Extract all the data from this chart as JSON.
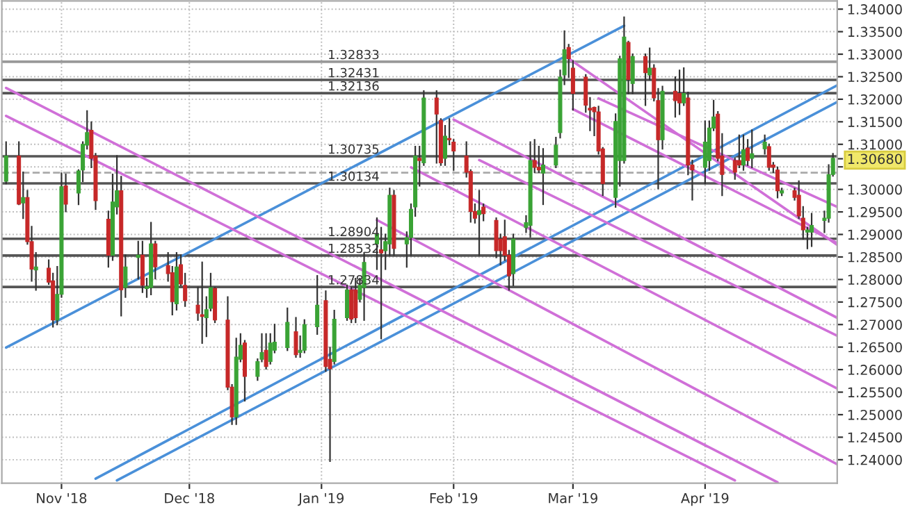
{
  "chart_data": {
    "type": "candlestick",
    "xlim": [
      "2018-10-18",
      "2019-05-02"
    ],
    "xticks": [
      {
        "value": "2018-11-01",
        "label": "Nov '18"
      },
      {
        "value": "2018-12-01",
        "label": "Dec '18"
      },
      {
        "value": "2019-01-01",
        "label": "Jan '19"
      },
      {
        "value": "2019-02-01",
        "label": "Feb '19"
      },
      {
        "value": "2019-03-01",
        "label": "Mar '19"
      },
      {
        "value": "2019-04-01",
        "label": "Apr '19"
      }
    ],
    "ylim": [
      1.2348,
      1.3418
    ],
    "yticks": [
      {
        "value": 1.24,
        "label": "1.24000"
      },
      {
        "value": 1.245,
        "label": "1.24500"
      },
      {
        "value": 1.25,
        "label": "1.25000"
      },
      {
        "value": 1.255,
        "label": "1.25500"
      },
      {
        "value": 1.26,
        "label": "1.26000"
      },
      {
        "value": 1.265,
        "label": "1.26500"
      },
      {
        "value": 1.27,
        "label": "1.27000"
      },
      {
        "value": 1.275,
        "label": "1.27500"
      },
      {
        "value": 1.28,
        "label": "1.28000"
      },
      {
        "value": 1.285,
        "label": "1.28500"
      },
      {
        "value": 1.29,
        "label": "1.29000"
      },
      {
        "value": 1.295,
        "label": "1.29500"
      },
      {
        "value": 1.3,
        "label": "1.30000"
      },
      {
        "value": 1.305,
        "label": null
      },
      {
        "value": 1.3068,
        "label": "1.30680"
      },
      {
        "value": 1.31,
        "label": "1.31000"
      },
      {
        "value": 1.315,
        "label": "1.31500"
      },
      {
        "value": 1.32,
        "label": "1.32000"
      },
      {
        "value": 1.325,
        "label": "1.32500"
      },
      {
        "value": 1.33,
        "label": "1.33000"
      },
      {
        "value": 1.335,
        "label": "1.33500"
      },
      {
        "value": 1.34,
        "label": "1.34000"
      }
    ],
    "grid": true,
    "ref_lines": [
      {
        "axis": "y",
        "value": 1.32833,
        "label": "1.32833",
        "color": "#999999"
      },
      {
        "axis": "y",
        "value": 1.32431,
        "label": "1.32431",
        "color": "#555555"
      },
      {
        "axis": "y",
        "value": 1.32136,
        "label": "1.32136",
        "color": "#555555"
      },
      {
        "axis": "y",
        "value": 1.30735,
        "label": "1.30735",
        "color": "#555555"
      },
      {
        "axis": "y",
        "value": 1.30134,
        "label": "1.30134",
        "color": "#555555"
      },
      {
        "axis": "y",
        "value": 1.28904,
        "label": "1.28904",
        "color": "#555555"
      },
      {
        "axis": "y",
        "value": 1.28532,
        "label": "1.28532",
        "color": "#555555"
      },
      {
        "axis": "y",
        "value": 1.27834,
        "label": "1.27834",
        "color": "#555555"
      },
      {
        "axis": "y",
        "value": 1.3037,
        "label": null,
        "color": "#aaaaaa",
        "line_style": "dashed"
      }
    ],
    "series": [
      {
        "type": "line",
        "color": "#4a90d9",
        "x": [
          "2018-10-19",
          "2019-03-13"
        ],
        "values": [
          1.2649,
          1.3363
        ]
      },
      {
        "type": "line",
        "color": "#4a90d9",
        "x": [
          "2018-11-09",
          "2019-05-02"
        ],
        "values": [
          1.2358,
          1.3231
        ]
      },
      {
        "type": "line",
        "color": "#4a90d9",
        "x": [
          "2018-11-14",
          "2019-05-02"
        ],
        "values": [
          1.2354,
          1.3194
        ]
      },
      {
        "type": "line",
        "color": "#d070d8",
        "x": [
          "2018-10-19",
          "2019-04-18"
        ],
        "values": [
          1.3225,
          1.235
        ]
      },
      {
        "type": "line",
        "color": "#d070d8",
        "x": [
          "2018-10-19",
          "2019-04-08"
        ],
        "values": [
          1.3163,
          1.2354
        ]
      },
      {
        "type": "line",
        "color": "#d070d8",
        "x": [
          "2019-01-14",
          "2019-05-02"
        ],
        "values": [
          1.2932,
          1.239
        ]
      },
      {
        "type": "line",
        "color": "#d070d8",
        "x": [
          "2019-01-22",
          "2019-05-02"
        ],
        "values": [
          1.3049,
          1.2558
        ]
      },
      {
        "type": "line",
        "color": "#d070d8",
        "x": [
          "2019-02-01",
          "2019-05-02"
        ],
        "values": [
          1.3155,
          1.2715
        ]
      },
      {
        "type": "line",
        "color": "#d070d8",
        "x": [
          "2019-02-07",
          "2019-05-02"
        ],
        "values": [
          1.3065,
          1.2675
        ]
      },
      {
        "type": "line",
        "color": "#d070d8",
        "x": [
          "2019-02-27",
          "2019-05-02"
        ],
        "values": [
          1.3297,
          1.2877
        ]
      },
      {
        "type": "line",
        "color": "#d070d8",
        "x": [
          "2019-03-01",
          "2019-05-02"
        ],
        "values": [
          1.3178,
          1.2881
        ]
      },
      {
        "type": "line",
        "color": "#d070d8",
        "x": [
          "2019-03-07",
          "2019-05-02"
        ],
        "values": [
          1.3202,
          1.2961
        ]
      },
      {
        "x": [
          "2018-10-19",
          "2018-10-22",
          "2018-10-23",
          "2018-10-24",
          "2018-10-25",
          "2018-10-26",
          "2018-10-29",
          "2018-10-30",
          "2018-10-31",
          "2018-11-01",
          "2018-11-02",
          "2018-11-05",
          "2018-11-06",
          "2018-11-07",
          "2018-11-08",
          "2018-11-09",
          "2018-11-12",
          "2018-11-13",
          "2018-11-14",
          "2018-11-15",
          "2018-11-16",
          "2018-11-19",
          "2018-11-20",
          "2018-11-21",
          "2018-11-22",
          "2018-11-23",
          "2018-11-26",
          "2018-11-27",
          "2018-11-28",
          "2018-11-29",
          "2018-11-30",
          "2018-12-03",
          "2018-12-04",
          "2018-12-05",
          "2018-12-06",
          "2018-12-07",
          "2018-12-10",
          "2018-12-11",
          "2018-12-12",
          "2018-12-13",
          "2018-12-14",
          "2018-12-17",
          "2018-12-18",
          "2018-12-19",
          "2018-12-20",
          "2018-12-21",
          "2018-12-24",
          "2018-12-26",
          "2018-12-27",
          "2018-12-28",
          "2018-12-31",
          "2019-01-02",
          "2019-01-03",
          "2019-01-04",
          "2019-01-07",
          "2019-01-08",
          "2019-01-09",
          "2019-01-10",
          "2019-01-11",
          "2019-01-14",
          "2019-01-15",
          "2019-01-16",
          "2019-01-17",
          "2019-01-18",
          "2019-01-21",
          "2019-01-22",
          "2019-01-23",
          "2019-01-24",
          "2019-01-25",
          "2019-01-28",
          "2019-01-29",
          "2019-01-30",
          "2019-01-31",
          "2019-02-01",
          "2019-02-04",
          "2019-02-05",
          "2019-02-06",
          "2019-02-07",
          "2019-02-08",
          "2019-02-11",
          "2019-02-12",
          "2019-02-13",
          "2019-02-14",
          "2019-02-15",
          "2019-02-18",
          "2019-02-19",
          "2019-02-20",
          "2019-02-21",
          "2019-02-22",
          "2019-02-25",
          "2019-02-26",
          "2019-02-27",
          "2019-02-28",
          "2019-03-01",
          "2019-03-04",
          "2019-03-05",
          "2019-03-06",
          "2019-03-07",
          "2019-03-08",
          "2019-03-11",
          "2019-03-12",
          "2019-03-13",
          "2019-03-14",
          "2019-03-15",
          "2019-03-18",
          "2019-03-19",
          "2019-03-20",
          "2019-03-21",
          "2019-03-22",
          "2019-03-25",
          "2019-03-26",
          "2019-03-27",
          "2019-03-28",
          "2019-03-29",
          "2019-04-01",
          "2019-04-02",
          "2019-04-03",
          "2019-04-04",
          "2019-04-05",
          "2019-04-08",
          "2019-04-09",
          "2019-04-10",
          "2019-04-11",
          "2019-04-12",
          "2019-04-15",
          "2019-04-16",
          "2019-04-17",
          "2019-04-18",
          "2019-04-19",
          "2019-04-22",
          "2019-04-23",
          "2019-04-24",
          "2019-04-25",
          "2019-04-26",
          "2019-04-29",
          "2019-04-30",
          "2019-05-01"
        ],
        "ohlc": [
          [
            1.3018,
            1.3105,
            1.3013,
            1.3074
          ],
          [
            1.3074,
            1.3105,
            1.2967,
            1.2967
          ],
          [
            1.297,
            1.3038,
            1.2936,
            1.2982
          ],
          [
            1.2982,
            1.2997,
            1.2879,
            1.2884
          ],
          [
            1.2884,
            1.2917,
            1.2797,
            1.2823
          ],
          [
            1.2821,
            1.2859,
            1.2777,
            1.2828
          ],
          [
            1.2825,
            1.2843,
            1.279,
            1.2794
          ],
          [
            1.2797,
            1.2813,
            1.2695,
            1.271
          ],
          [
            1.271,
            1.2828,
            1.27,
            1.2767
          ],
          [
            1.2767,
            1.3036,
            1.2761,
            1.3006
          ],
          [
            1.3008,
            1.3033,
            1.2951,
            1.2967
          ],
          [
            1.2992,
            1.3043,
            1.2967,
            1.3041
          ],
          [
            1.3043,
            1.3105,
            1.3018,
            1.31
          ],
          [
            1.3098,
            1.3174,
            1.309,
            1.3126
          ],
          [
            1.3131,
            1.3149,
            1.3049,
            1.3069
          ],
          [
            1.3074,
            1.3079,
            1.2956,
            1.2975
          ],
          [
            1.2934,
            1.2951,
            1.2828,
            1.2854
          ],
          [
            1.2854,
            1.3033,
            1.2843,
            1.2972
          ],
          [
            1.2961,
            1.3074,
            1.2946,
            1.2997
          ],
          [
            1.2997,
            1.3028,
            1.272,
            1.2777
          ],
          [
            1.2782,
            1.2854,
            1.2761,
            1.2828
          ],
          [
            1.2849,
            1.2884,
            1.2802,
            1.2854
          ],
          [
            1.2854,
            1.2884,
            1.2772,
            1.2787
          ],
          [
            1.278,
            1.2802,
            1.2761,
            1.2784
          ],
          [
            1.2782,
            1.2926,
            1.2767,
            1.2879
          ],
          [
            1.2879,
            1.2884,
            1.2802,
            1.2828
          ],
          [
            1.2831,
            1.2859,
            1.2797,
            1.2813
          ],
          [
            1.2815,
            1.2828,
            1.2722,
            1.2751
          ],
          [
            1.2746,
            1.2859,
            1.2733,
            1.2828
          ],
          [
            1.2833,
            1.2854,
            1.2787,
            1.279
          ],
          [
            1.2787,
            1.2813,
            1.2741,
            1.2753
          ],
          [
            1.2743,
            1.2782,
            1.271,
            1.2725
          ],
          [
            1.2722,
            1.2838,
            1.2659,
            1.2718
          ],
          [
            1.2715,
            1.2761,
            1.2674,
            1.2733
          ],
          [
            1.2736,
            1.2813,
            1.2731,
            1.2782
          ],
          [
            1.278,
            1.2782,
            1.2705,
            1.271
          ],
          [
            1.271,
            1.2761,
            1.2556,
            1.2561
          ],
          [
            1.2561,
            1.2566,
            1.2479,
            1.2495
          ],
          [
            1.2495,
            1.2669,
            1.2479,
            1.2628
          ],
          [
            1.2623,
            1.2679,
            1.2618,
            1.2654
          ],
          [
            1.2659,
            1.2664,
            1.2531,
            1.2585
          ],
          [
            1.2585,
            1.2623,
            1.2577,
            1.2618
          ],
          [
            1.2623,
            1.2679,
            1.2618,
            1.2638
          ],
          [
            1.2643,
            1.2679,
            1.2602,
            1.2607
          ],
          [
            1.2618,
            1.2679,
            1.2613,
            1.2659
          ],
          [
            1.2643,
            1.27,
            1.2638,
            1.2661
          ],
          [
            1.2649,
            1.2736,
            1.2643,
            1.2705
          ],
          [
            1.2684,
            1.2715,
            1.2628,
            1.2633
          ],
          [
            1.2638,
            1.2674,
            1.2628,
            1.2643
          ],
          [
            1.2643,
            1.271,
            1.2638,
            1.27
          ],
          [
            1.2695,
            1.2808,
            1.2679,
            1.2743
          ],
          [
            1.2753,
            1.2774,
            1.2597,
            1.2607
          ],
          [
            1.2623,
            1.2649,
            1.2397,
            1.2602
          ],
          [
            1.2618,
            1.2731,
            1.2613,
            1.2712
          ],
          [
            1.2715,
            1.2787,
            1.271,
            1.2777
          ],
          [
            1.2777,
            1.2782,
            1.2705,
            1.2712
          ],
          [
            1.2777,
            1.2802,
            1.2705,
            1.2715
          ],
          [
            1.2756,
            1.2802,
            1.2751,
            1.2787
          ],
          [
            1.2782,
            1.2859,
            1.271,
            1.2838
          ],
          [
            1.2879,
            1.2936,
            1.2823,
            1.29
          ],
          [
            1.2866,
            1.2915,
            1.2669,
            1.2859
          ],
          [
            1.2864,
            1.29,
            1.2823,
            1.2884
          ],
          [
            1.2879,
            1.3002,
            1.2854,
            1.2987
          ],
          [
            1.2987,
            1.2997,
            1.2854,
            1.2869
          ],
          [
            1.2879,
            1.2905,
            1.2828,
            1.2893
          ],
          [
            1.2893,
            1.2967,
            1.2854,
            1.2956
          ],
          [
            1.2961,
            1.3095,
            1.2941,
            1.3074
          ],
          [
            1.3069,
            1.3095,
            1.3008,
            1.3064
          ],
          [
            1.3059,
            1.3218,
            1.3054,
            1.3203
          ],
          [
            1.3203,
            1.3218,
            1.3059,
            1.3167
          ],
          [
            1.3153,
            1.3156,
            1.3054,
            1.3059
          ],
          [
            1.3069,
            1.3141,
            1.3054,
            1.3118
          ],
          [
            1.3113,
            1.3156,
            1.31,
            1.311
          ],
          [
            1.3105,
            1.311,
            1.3043,
            1.3085
          ],
          [
            1.3074,
            1.3105,
            1.3028,
            1.3038
          ],
          [
            1.304,
            1.3043,
            1.2928,
            1.2951
          ],
          [
            1.2951,
            1.2967,
            1.2926,
            1.2936
          ],
          [
            1.2944,
            1.2997,
            1.2854,
            1.2953
          ],
          [
            1.2961,
            1.2967,
            1.2931,
            1.2946
          ],
          [
            1.2931,
            1.2936,
            1.2849,
            1.2864
          ],
          [
            1.289,
            1.29,
            1.2833,
            1.2864
          ],
          [
            1.2895,
            1.2931,
            1.2843,
            1.2854
          ],
          [
            1.2854,
            1.2864,
            1.2777,
            1.2808
          ],
          [
            1.2813,
            1.29,
            1.2787,
            1.289
          ],
          [
            1.2915,
            1.2941,
            1.2905,
            1.2926
          ],
          [
            1.292,
            1.3105,
            1.2895,
            1.3064
          ],
          [
            1.3064,
            1.311,
            1.3038,
            1.3049
          ],
          [
            1.3049,
            1.3095,
            1.3038,
            1.3043
          ],
          [
            1.3036,
            1.309,
            1.2967,
            1.3054
          ],
          [
            1.3054,
            1.3115,
            1.3049,
            1.3098
          ],
          [
            1.3126,
            1.3264,
            1.3115,
            1.3249
          ],
          [
            1.3254,
            1.3351,
            1.3233,
            1.331
          ],
          [
            1.3315,
            1.3321,
            1.3249,
            1.329
          ],
          [
            1.3269,
            1.3285,
            1.3177,
            1.3213
          ],
          [
            1.3249,
            1.3254,
            1.3172,
            1.3187
          ],
          [
            1.318,
            1.3203,
            1.3131,
            1.3176
          ],
          [
            1.3182,
            1.3182,
            1.312,
            1.3172
          ],
          [
            1.3172,
            1.3184,
            1.3079,
            1.3085
          ],
          [
            1.309,
            1.3092,
            1.2987,
            1.3013
          ],
          [
            1.2982,
            1.3167,
            1.2961,
            1.3151
          ],
          [
            1.3064,
            1.3295,
            1.3008,
            1.329
          ],
          [
            1.3064,
            1.3382,
            1.3059,
            1.3338
          ],
          [
            1.3326,
            1.3328,
            1.3213,
            1.3244
          ],
          [
            1.3235,
            1.33,
            1.3213,
            1.3295
          ],
          [
            1.3295,
            1.33,
            1.3187,
            1.3259
          ],
          [
            1.3254,
            1.3313,
            1.3244,
            1.3269
          ],
          [
            1.3269,
            1.3276,
            1.3197,
            1.3203
          ],
          [
            1.3197,
            1.3223,
            1.3002,
            1.311
          ],
          [
            1.311,
            1.3228,
            1.309,
            1.3218
          ],
          [
            1.3218,
            1.3249,
            1.3161,
            1.3197
          ],
          [
            1.3213,
            1.3264,
            1.3167,
            1.3192
          ],
          [
            1.3192,
            1.3269,
            1.3187,
            1.3213
          ],
          [
            1.3203,
            1.3215,
            1.3033,
            1.3054
          ],
          [
            1.3054,
            1.3064,
            1.2977,
            1.3043
          ],
          [
            1.3049,
            1.3151,
            1.3013,
            1.3105
          ],
          [
            1.3064,
            1.3151,
            1.3043,
            1.3136
          ],
          [
            1.3136,
            1.3197,
            1.3131,
            1.3161
          ],
          [
            1.3167,
            1.3172,
            1.3064,
            1.3069
          ],
          [
            1.3074,
            1.3123,
            1.2987,
            1.3033
          ],
          [
            1.3064,
            1.3069,
            1.3023,
            1.3038
          ],
          [
            1.3064,
            1.312,
            1.3049,
            1.3054
          ],
          [
            1.3054,
            1.312,
            1.3043,
            1.3088
          ],
          [
            1.3092,
            1.311,
            1.3054,
            1.3064
          ],
          [
            1.3069,
            1.3131,
            1.3049,
            1.3079
          ],
          [
            1.309,
            1.312,
            1.3079,
            1.3105
          ],
          [
            1.3095,
            1.31,
            1.3043,
            1.3049
          ],
          [
            1.3054,
            1.3059,
            1.3038,
            1.3049
          ],
          [
            1.3043,
            1.3049,
            1.2982,
            1.2997
          ],
          [
            1.2992,
            1.3002,
            1.2987,
            1.2997
          ],
          [
            1.2997,
            1.3002,
            1.2977,
            1.2982
          ],
          [
            1.2987,
            1.3018,
            1.2936,
            1.2941
          ],
          [
            1.2936,
            1.2961,
            1.289,
            1.291
          ],
          [
            1.2905,
            1.2915,
            1.2869,
            1.291
          ],
          [
            1.2905,
            1.2946,
            1.2874,
            1.292
          ],
          [
            1.2931,
            1.2951,
            1.2905,
            1.2936
          ],
          [
            1.2936,
            1.3054,
            1.2928,
            1.3033
          ],
          [
            1.3033,
            1.3079,
            1.303,
            1.3069
          ]
        ],
        "colors": [
          "#3aa335",
          "#c62828",
          "#3aa335",
          "#c62828",
          "#c62828",
          "#3aa335",
          "#c62828",
          "#c62828",
          "#3aa335",
          "#3aa335",
          "#c62828",
          "#3aa335",
          "#3aa335",
          "#3aa335",
          "#c62828",
          "#c62828",
          "#c62828",
          "#3aa335",
          "#3aa335",
          "#c62828",
          "#3aa335",
          "#3aa335",
          "#c62828",
          "#3aa335",
          "#3aa335",
          "#c62828",
          "#c62828",
          "#c62828",
          "#3aa335",
          "#c62828",
          "#c62828",
          "#c62828",
          "#c62828",
          "#3aa335",
          "#3aa335",
          "#c62828",
          "#c62828",
          "#c62828",
          "#3aa335",
          "#3aa335",
          "#c62828",
          "#3aa335",
          "#3aa335",
          "#c62828",
          "#3aa335",
          "#3aa335",
          "#3aa335",
          "#c62828",
          "#3aa335",
          "#3aa335",
          "#3aa335",
          "#c62828",
          "#c62828",
          "#3aa335",
          "#3aa335",
          "#c62828",
          "#c62828",
          "#3aa335",
          "#3aa335",
          "#3aa335",
          "#c62828",
          "#3aa335",
          "#3aa335",
          "#c62828",
          "#3aa335",
          "#3aa335",
          "#3aa335",
          "#c62828",
          "#3aa335",
          "#c62828",
          "#c62828",
          "#3aa335",
          "#c62828",
          "#c62828",
          "#c62828",
          "#c62828",
          "#c62828",
          "#3aa335",
          "#c62828",
          "#c62828",
          "#c62828",
          "#c62828",
          "#c62828",
          "#3aa335",
          "#3aa335",
          "#3aa335",
          "#c62828",
          "#c62828",
          "#3aa335",
          "#3aa335",
          "#3aa335",
          "#3aa335",
          "#c62828",
          "#c62828",
          "#c62828",
          "#c62828",
          "#c62828",
          "#c62828",
          "#c62828",
          "#3aa335",
          "#3aa335",
          "#3aa335",
          "#c62828",
          "#3aa335",
          "#c62828",
          "#3aa335",
          "#c62828",
          "#c62828",
          "#3aa335",
          "#c62828",
          "#c62828",
          "#3aa335",
          "#c62828",
          "#c62828",
          "#3aa335",
          "#3aa335",
          "#3aa335",
          "#c62828",
          "#c62828",
          "#c62828",
          "#c62828",
          "#3aa335",
          "#c62828",
          "#3aa335",
          "#3aa335",
          "#c62828",
          "#c62828",
          "#c62828",
          "#3aa335",
          "#c62828",
          "#c62828",
          "#c62828",
          "#3aa335",
          "#3aa335",
          "#3aa335",
          "#3aa335",
          "#3aa335"
        ]
      }
    ]
  }
}
